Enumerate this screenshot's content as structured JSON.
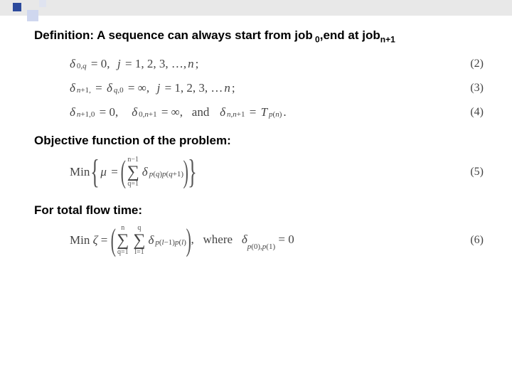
{
  "headings": {
    "definition_pre": "Definition: A sequence can always start from job",
    "definition_sub1": " 0",
    "definition_mid": ",end at job",
    "definition_sub2": "n+1",
    "objective": "Objective function of the problem:",
    "flowtime": "For total flow time:"
  },
  "equations": {
    "eq2": {
      "num": "(2)",
      "body": "δ_{0,q} = 0,  j = 1, 2, 3, …, n;"
    },
    "eq3": {
      "num": "(3)",
      "body": "δ_{n+1,} = δ_{q,0} = ∞,  j = 1, 2, 3, …n;"
    },
    "eq4": {
      "num": "(4)",
      "pre": "δ_{n+1,0} = 0,    δ_{0,n+1} = ∞,   and   δ_{n,n+1} = T_{p(n)}."
    },
    "eq5": {
      "num": "(5)",
      "min": "Min",
      "upper": "n−1",
      "lower": "q=1",
      "inner": "δ_{p(q)p(q+1)}"
    },
    "eq6": {
      "num": "(6)",
      "min": "Min ζ =",
      "upper1": "n",
      "lower1": "q=1",
      "upper2": "q",
      "lower2": "l=1",
      "inner": "δ_{p(l−1)p(l)}",
      "where": ",   where   δ_{p(0),p(1)} = 0"
    }
  },
  "style": {
    "bg": "#ffffff",
    "accent": "#2c4a9c",
    "text": "#000000",
    "math_color": "#444444",
    "heading_fontsize": 17,
    "math_fontsize": 17
  }
}
